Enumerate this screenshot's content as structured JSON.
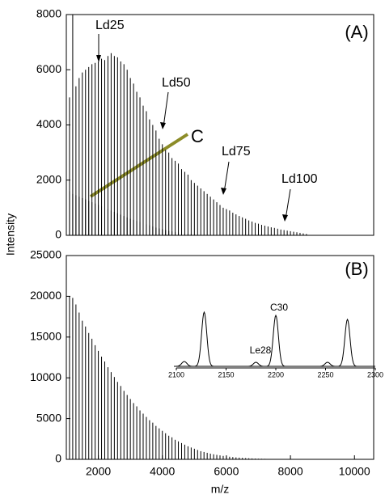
{
  "chart_data": [
    {
      "type": "bar",
      "panel_label": "(A)",
      "ylabel": "Intensity",
      "xlim": [
        1000,
        10600
      ],
      "ylim": [
        0,
        8000
      ],
      "yticks": [
        0,
        2000,
        4000,
        6000,
        8000
      ],
      "series": [
        {
          "color": "#000000",
          "x": [
            1000,
            1100,
            1200,
            1300,
            1400,
            1500,
            1600,
            1700,
            1800,
            1900,
            2000,
            2100,
            2200,
            2300,
            2400,
            2500,
            2600,
            2700,
            2800,
            2900,
            3000,
            3100,
            3200,
            3300,
            3400,
            3500,
            3600,
            3700,
            3800,
            3900,
            4000,
            4100,
            4200,
            4300,
            4400,
            4500,
            4600,
            4700,
            4800,
            4900,
            5000,
            5100,
            5200,
            5300,
            5400,
            5500,
            5600,
            5700,
            5800,
            5900,
            6000,
            6100,
            6200,
            6300,
            6400,
            6500,
            6600,
            6700,
            6800,
            6900,
            7000,
            7100,
            7200,
            7300,
            7400,
            7500,
            7600,
            7700,
            7800,
            7900,
            8000,
            8100,
            8200,
            8300,
            8400,
            8500
          ],
          "values": [
            4400,
            5000,
            8000,
            5400,
            5700,
            5900,
            6000,
            6100,
            6200,
            6250,
            6300,
            6400,
            6350,
            6500,
            6600,
            6500,
            6450,
            6300,
            6200,
            6000,
            5700,
            5500,
            5200,
            5000,
            4700,
            4500,
            4200,
            4000,
            3800,
            3500,
            3300,
            3100,
            3000,
            2800,
            2700,
            2600,
            2400,
            2300,
            2200,
            2000,
            1900,
            1800,
            1700,
            1600,
            1500,
            1400,
            1300,
            1200,
            1100,
            1000,
            950,
            900,
            820,
            760,
            700,
            650,
            600,
            540,
            500,
            450,
            420,
            380,
            350,
            320,
            290,
            270,
            240,
            210,
            190,
            170,
            150,
            130,
            110,
            90,
            70,
            50
          ]
        },
        {
          "color": "#000000",
          "x": [
            1000,
            1100,
            1200,
            1300,
            1400,
            1500,
            1600,
            1700,
            1800,
            1900,
            2000,
            2100,
            2200,
            2300,
            2400,
            2500,
            2600,
            2700,
            2800,
            2900,
            3000,
            3100,
            3200,
            3300,
            3400,
            3500,
            3600,
            3700,
            3800,
            3900,
            4000,
            4100,
            4200,
            4300,
            4400,
            4500,
            4600,
            4700,
            4800,
            4900,
            5000
          ],
          "values": [
            1700,
            1600,
            1500,
            1450,
            1400,
            1350,
            1300,
            1250,
            1200,
            1150,
            1100,
            1050,
            1000,
            950,
            900,
            850,
            800,
            750,
            700,
            650,
            600,
            560,
            520,
            480,
            440,
            400,
            360,
            320,
            280,
            250,
            220,
            190,
            160,
            140,
            120,
            100,
            80,
            60,
            50,
            40,
            30
          ]
        }
      ],
      "annotations": [
        "Ld25",
        "Ld50",
        "Ld75",
        "Ld100",
        "C"
      ]
    },
    {
      "type": "bar",
      "panel_label": "(B)",
      "xlabel": "m/z",
      "xlim": [
        1000,
        10600
      ],
      "xticks": [
        2000,
        4000,
        6000,
        8000,
        10000
      ],
      "ylim": [
        0,
        25000
      ],
      "yticks": [
        0,
        5000,
        10000,
        15000,
        20000,
        25000
      ],
      "series": [
        {
          "color": "#000000",
          "x": [
            1000,
            1100,
            1200,
            1300,
            1400,
            1500,
            1600,
            1700,
            1800,
            1900,
            2000,
            2100,
            2200,
            2300,
            2400,
            2500,
            2600,
            2700,
            2800,
            2900,
            3000,
            3100,
            3200,
            3300,
            3400,
            3500,
            3600,
            3700,
            3800,
            3900,
            4000,
            4100,
            4200,
            4300,
            4400,
            4500,
            4600,
            4700,
            4800,
            4900,
            5000,
            5100,
            5200,
            5300,
            5400,
            5500,
            5600,
            5700,
            5800,
            5900,
            6000,
            6100,
            6200,
            6300,
            6400,
            6500,
            6600,
            6700,
            6800,
            6900,
            7000,
            7100,
            7200,
            7300,
            7400,
            7500,
            7600,
            7700,
            7800,
            7900,
            8000
          ],
          "values": [
            21000,
            20000,
            19800,
            19000,
            18000,
            17000,
            16300,
            15500,
            14800,
            14000,
            13300,
            12600,
            12000,
            11300,
            10700,
            10100,
            9500,
            9000,
            8400,
            7900,
            7400,
            6900,
            6500,
            6000,
            5600,
            5200,
            4800,
            4500,
            4100,
            3800,
            3500,
            3200,
            2900,
            2700,
            2400,
            2200,
            2000,
            1800,
            1600,
            1450,
            1300,
            1150,
            1000,
            900,
            800,
            700,
            620,
            550,
            480,
            420,
            370,
            320,
            280,
            240,
            210,
            180,
            150,
            130,
            110,
            90,
            80,
            70,
            60,
            50,
            40,
            35,
            30,
            25,
            20,
            15,
            10
          ]
        }
      ]
    },
    {
      "type": "peaks",
      "xlim": [
        2100,
        2300
      ],
      "xticks": [
        2100,
        2150,
        2200,
        2250,
        2300
      ],
      "x": [
        2108,
        2128,
        2180,
        2200,
        2252,
        2272
      ],
      "values": [
        6,
        67,
        5,
        63,
        5,
        58
      ],
      "color": "#000000",
      "labels": [
        "Le28",
        "C30"
      ]
    }
  ]
}
